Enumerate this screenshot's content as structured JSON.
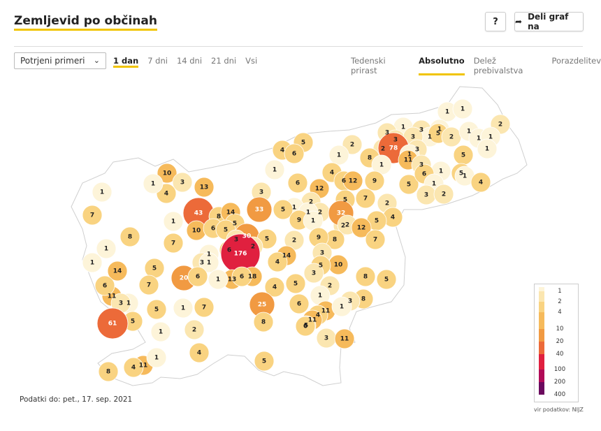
{
  "title": "Zemljevid po občinah",
  "help_label": "?",
  "share_label": "Deli graf na",
  "select_value": "Potrjeni primeri",
  "period_tabs": [
    "1 dan",
    "7 dni",
    "14 dni",
    "21 dni",
    "Vsi"
  ],
  "mode_tabs": [
    "Tedenski prirast",
    "Absolutno",
    "Delež prebivalstva",
    "Porazdelitev"
  ],
  "footnote": "Podatki do: pet., 17. sep. 2021",
  "source": "vir podatkov: NIJZ",
  "legend": {
    "labels": [
      "1",
      "2",
      "4",
      "10",
      "20",
      "40",
      "100",
      "200",
      "400"
    ],
    "colors": [
      "#fdf4d9",
      "#fbe6b0",
      "#f9d381",
      "#f6ba5b",
      "#f19a42",
      "#ec6a39",
      "#e0203f",
      "#b10b57",
      "#6b0a5e"
    ]
  },
  "map_values": [
    "1",
    "1",
    "2",
    "1",
    "3",
    "1",
    "3",
    "1",
    "5",
    "2",
    "1",
    "1",
    "1",
    "2",
    "5",
    "4",
    "1",
    "3",
    "3",
    "6",
    "5",
    "1",
    "2",
    "3",
    "78",
    "1",
    "8",
    "11",
    "1",
    "3",
    "10",
    "1",
    "4",
    "13",
    "1",
    "1",
    "5",
    "4",
    "3",
    "6",
    "12",
    "6",
    "12",
    "9",
    "5",
    "6",
    "1",
    "3",
    "2",
    "1",
    "4",
    "3",
    "5",
    "2",
    "1",
    "2",
    "7",
    "2",
    "1",
    "5",
    "43",
    "8",
    "14",
    "33",
    "2",
    "4",
    "5",
    "9",
    "32",
    "2",
    "1",
    "5",
    "10",
    "6",
    "5",
    "1",
    "1",
    "30",
    "12",
    "7",
    "8",
    "5",
    "2",
    "9",
    "7",
    "8",
    "7",
    "6",
    "14",
    "1",
    "3",
    "2",
    "176",
    "1",
    "4",
    "1",
    "3",
    "10",
    "3",
    "1",
    "8",
    "14",
    "5",
    "20",
    "6",
    "5",
    "13",
    "18",
    "5",
    "1",
    "4",
    "7",
    "6",
    "5",
    "11",
    "3",
    "2",
    "1",
    "8",
    "6",
    "1",
    "3",
    "11",
    "4",
    "7",
    "3",
    "25",
    "6",
    "1",
    "11",
    "5",
    "5",
    "1",
    "8",
    "5",
    "2",
    "6",
    "1",
    "3",
    "11",
    "61",
    "5",
    "11",
    "8",
    "4",
    "1",
    "4"
  ],
  "legend_title": ""
}
